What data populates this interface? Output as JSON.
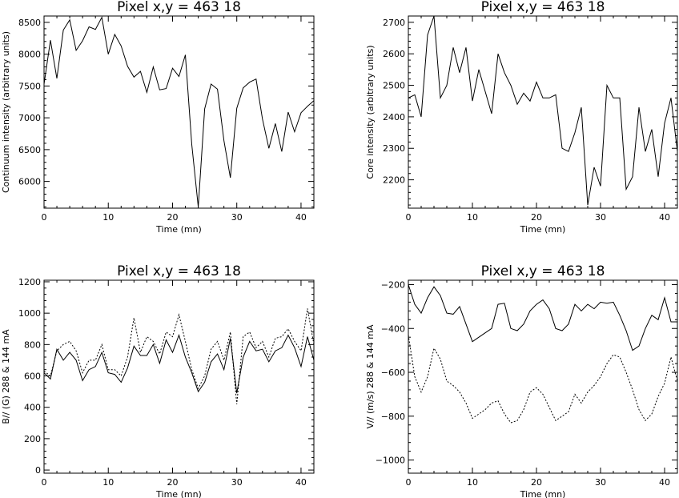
{
  "chart_data": [
    {
      "type": "line",
      "title": "Pixel x,y = 463 18",
      "xlabel": "Time (mn)",
      "ylabel": "Continuum intensity (arbitrary units)",
      "xlim": [
        0,
        42
      ],
      "ylim": [
        5580,
        8600
      ],
      "xticks": [
        0,
        10,
        20,
        30,
        40
      ],
      "yticks": [
        6000,
        6500,
        7000,
        7500,
        8000,
        8500
      ],
      "x_tick_labels": [
        "0",
        "10",
        "20",
        "30",
        "40"
      ],
      "y_tick_labels": [
        "6000",
        "6500",
        "7000",
        "7500",
        "8000",
        "8500"
      ],
      "series": [
        {
          "style": "solid",
          "x": [
            0,
            1,
            2,
            3,
            4,
            5,
            6,
            7,
            8,
            9,
            10,
            11,
            12,
            13,
            14,
            15,
            16,
            17,
            18,
            19,
            20,
            21,
            22,
            23,
            24,
            25,
            26,
            27,
            28,
            29,
            30,
            31,
            32,
            33,
            34,
            35,
            36,
            37,
            38,
            39,
            40,
            41,
            42
          ],
          "y": [
            7530,
            8220,
            7620,
            8380,
            8540,
            8060,
            8210,
            8430,
            8390,
            8580,
            8000,
            8310,
            8130,
            7810,
            7640,
            7730,
            7400,
            7800,
            7440,
            7460,
            7780,
            7650,
            7990,
            6580,
            5600,
            7140,
            7530,
            7450,
            6640,
            6060,
            7150,
            7470,
            7560,
            7610,
            6980,
            6520,
            6910,
            6470,
            7090,
            6780,
            7080,
            7180,
            7270
          ]
        }
      ]
    },
    {
      "type": "line",
      "title": "Pixel x,y = 463 18",
      "xlabel": "Time (mn)",
      "ylabel": "Core intensity (arbitrary units)",
      "xlim": [
        0,
        42
      ],
      "ylim": [
        2110,
        2720
      ],
      "xticks": [
        0,
        10,
        20,
        30,
        40
      ],
      "yticks": [
        2200,
        2300,
        2400,
        2500,
        2600,
        2700
      ],
      "x_tick_labels": [
        "0",
        "10",
        "20",
        "30",
        "40"
      ],
      "y_tick_labels": [
        "2200",
        "2300",
        "2400",
        "2500",
        "2600",
        "2700"
      ],
      "series": [
        {
          "style": "solid",
          "x": [
            0,
            1,
            2,
            3,
            4,
            5,
            6,
            7,
            8,
            9,
            10,
            11,
            12,
            13,
            14,
            15,
            16,
            17,
            18,
            19,
            20,
            21,
            22,
            23,
            24,
            25,
            26,
            27,
            28,
            29,
            30,
            31,
            32,
            33,
            34,
            35,
            36,
            37,
            38,
            39,
            40,
            41,
            42
          ],
          "y": [
            2460,
            2470,
            2400,
            2660,
            2720,
            2460,
            2500,
            2620,
            2540,
            2620,
            2450,
            2550,
            2480,
            2410,
            2600,
            2540,
            2500,
            2440,
            2475,
            2450,
            2510,
            2460,
            2460,
            2470,
            2300,
            2290,
            2350,
            2430,
            2120,
            2240,
            2180,
            2500,
            2460,
            2460,
            2170,
            2210,
            2430,
            2290,
            2360,
            2210,
            2380,
            2460,
            2290
          ]
        }
      ]
    },
    {
      "type": "line",
      "title": "Pixel x,y = 463 18",
      "xlabel": "Time (mn)",
      "ylabel": "B// (G) 288 & 144 mA",
      "xlim": [
        0,
        42
      ],
      "ylim": [
        -20,
        1210
      ],
      "xticks": [
        0,
        10,
        20,
        30,
        40
      ],
      "yticks": [
        0,
        200,
        400,
        600,
        800,
        1000,
        1200
      ],
      "x_tick_labels": [
        "0",
        "10",
        "20",
        "30",
        "40"
      ],
      "y_tick_labels": [
        "0",
        "200",
        "400",
        "600",
        "800",
        "1000",
        "1200"
      ],
      "series": [
        {
          "style": "solid",
          "x": [
            0,
            1,
            2,
            3,
            4,
            5,
            6,
            7,
            8,
            9,
            10,
            11,
            12,
            13,
            14,
            15,
            16,
            17,
            18,
            19,
            20,
            21,
            22,
            23,
            24,
            25,
            26,
            27,
            28,
            29,
            30,
            31,
            32,
            33,
            34,
            35,
            36,
            37,
            38,
            39,
            40,
            41,
            42
          ],
          "y": [
            620,
            580,
            770,
            700,
            750,
            700,
            570,
            640,
            660,
            750,
            620,
            610,
            560,
            650,
            790,
            730,
            730,
            800,
            680,
            830,
            750,
            860,
            720,
            620,
            500,
            560,
            690,
            740,
            640,
            840,
            490,
            720,
            820,
            760,
            770,
            690,
            760,
            780,
            860,
            780,
            660,
            850,
            700
          ]
        },
        {
          "style": "dashed",
          "x": [
            0,
            1,
            2,
            3,
            4,
            5,
            6,
            7,
            8,
            9,
            10,
            11,
            12,
            13,
            14,
            15,
            16,
            17,
            18,
            19,
            20,
            21,
            22,
            23,
            24,
            25,
            26,
            27,
            28,
            29,
            30,
            31,
            32,
            33,
            34,
            35,
            36,
            37,
            38,
            39,
            40,
            41,
            42
          ],
          "y": [
            630,
            600,
            760,
            800,
            820,
            760,
            620,
            700,
            700,
            800,
            640,
            640,
            600,
            720,
            970,
            750,
            850,
            820,
            740,
            880,
            850,
            990,
            820,
            640,
            520,
            600,
            770,
            820,
            700,
            880,
            420,
            850,
            880,
            780,
            820,
            720,
            840,
            850,
            900,
            820,
            760,
            1030,
            800
          ]
        }
      ]
    },
    {
      "type": "line",
      "title": "Pixel x,y = 463 18",
      "xlabel": "Time (mn)",
      "ylabel": "V// (m/s) 288 & 144 mA",
      "xlim": [
        0,
        42
      ],
      "ylim": [
        -1060,
        -180
      ],
      "xticks": [
        0,
        10,
        20,
        30,
        40
      ],
      "yticks": [
        -1000,
        -800,
        -600,
        -400,
        -200
      ],
      "x_tick_labels": [
        "0",
        "10",
        "20",
        "30",
        "40"
      ],
      "y_tick_labels": [
        "−1000",
        "−800",
        "−600",
        "−400",
        "−200"
      ],
      "series": [
        {
          "style": "solid",
          "x": [
            0,
            1,
            2,
            3,
            4,
            5,
            6,
            7,
            8,
            9,
            10,
            11,
            12,
            13,
            14,
            15,
            16,
            17,
            18,
            19,
            20,
            21,
            22,
            23,
            24,
            25,
            26,
            27,
            28,
            29,
            30,
            31,
            32,
            33,
            34,
            35,
            36,
            37,
            38,
            39,
            40,
            41,
            42
          ],
          "y": [
            -200,
            -290,
            -330,
            -260,
            -210,
            -250,
            -330,
            -335,
            -300,
            -380,
            -460,
            -440,
            -420,
            -400,
            -290,
            -285,
            -400,
            -410,
            -380,
            -320,
            -290,
            -270,
            -310,
            -400,
            -410,
            -380,
            -290,
            -320,
            -290,
            -310,
            -280,
            -285,
            -280,
            -340,
            -410,
            -500,
            -480,
            -400,
            -340,
            -360,
            -260,
            -370,
            -370
          ]
        },
        {
          "style": "dashed",
          "x": [
            0,
            1,
            2,
            3,
            4,
            5,
            6,
            7,
            8,
            9,
            10,
            11,
            12,
            13,
            14,
            15,
            16,
            17,
            18,
            19,
            20,
            21,
            22,
            23,
            24,
            25,
            26,
            27,
            28,
            29,
            30,
            31,
            32,
            33,
            34,
            35,
            36,
            37,
            38,
            39,
            40,
            41,
            42
          ],
          "y": [
            -430,
            -620,
            -690,
            -620,
            -490,
            -540,
            -640,
            -660,
            -690,
            -740,
            -810,
            -790,
            -770,
            -740,
            -730,
            -790,
            -830,
            -820,
            -770,
            -690,
            -670,
            -700,
            -760,
            -820,
            -800,
            -780,
            -700,
            -740,
            -690,
            -660,
            -620,
            -560,
            -520,
            -530,
            -600,
            -680,
            -770,
            -820,
            -790,
            -710,
            -650,
            -530,
            -640
          ]
        }
      ]
    }
  ]
}
